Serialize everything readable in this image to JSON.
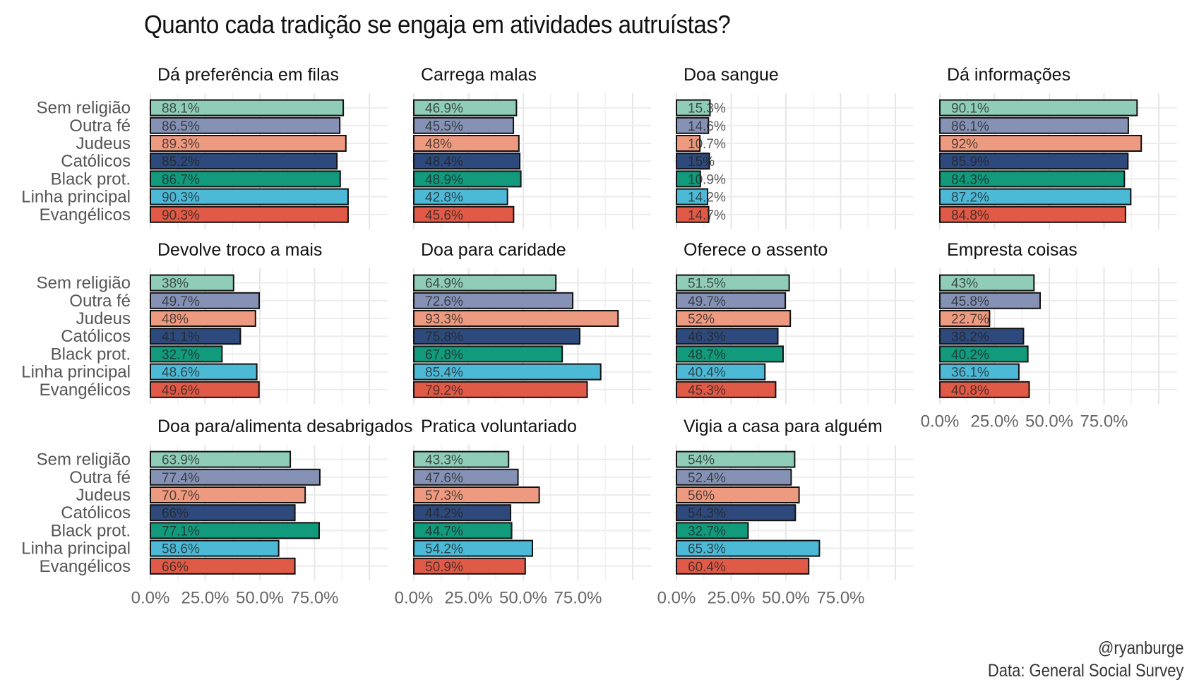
{
  "title": "Quanto cada tradição se engaja em atividades autruístas?",
  "credit": {
    "line1": "@ryanburge",
    "line2": "Data: General Social Survey"
  },
  "chart_data": {
    "type": "bar",
    "orientation": "horizontal",
    "facets": true,
    "categories": [
      "Sem religião",
      "Outra fé",
      "Judeus",
      "Católicos",
      "Black prot.",
      "Linha principal",
      "Evangélicos"
    ],
    "colors": [
      "#8fcdb8",
      "#8592b5",
      "#ee9a80",
      "#2e4a7d",
      "#129a7c",
      "#4cb9d6",
      "#e05a47"
    ],
    "xlim": [
      0,
      100
    ],
    "xticks": [
      "0.0%",
      "25.0%",
      "50.0%",
      "75.0%"
    ],
    "grid": true,
    "panels": [
      {
        "title": "Dá preferência em filas",
        "values": [
          88.1,
          86.5,
          89.3,
          85.2,
          86.7,
          90.3,
          90.3
        ],
        "labels": [
          "88.1%",
          "86.5%",
          "89.3%",
          "85.2%",
          "86.7%",
          "90.3%",
          "90.3%"
        ]
      },
      {
        "title": "Carrega malas",
        "values": [
          46.9,
          45.5,
          48,
          48.4,
          48.9,
          42.8,
          45.6
        ],
        "labels": [
          "46.9%",
          "45.5%",
          "48%",
          "48.4%",
          "48.9%",
          "42.8%",
          "45.6%"
        ]
      },
      {
        "title": "Doa sangue",
        "values": [
          15.3,
          14.6,
          10.7,
          15,
          10.9,
          14.2,
          14.7
        ],
        "labels": [
          "15.3%",
          "14.6%",
          "10.7%",
          "15%",
          "10.9%",
          "14.2%",
          "14.7%"
        ]
      },
      {
        "title": "Dá informações",
        "values": [
          90.1,
          86.1,
          92,
          85.9,
          84.3,
          87.2,
          84.8
        ],
        "labels": [
          "90.1%",
          "86.1%",
          "92%",
          "85.9%",
          "84.3%",
          "87.2%",
          "84.8%"
        ]
      },
      {
        "title": "Devolve troco a mais",
        "values": [
          38,
          49.7,
          48,
          41.1,
          32.7,
          48.6,
          49.6
        ],
        "labels": [
          "38%",
          "49.7%",
          "48%",
          "41.1%",
          "32.7%",
          "48.6%",
          "49.6%"
        ]
      },
      {
        "title": "Doa para caridade",
        "values": [
          64.9,
          72.6,
          93.3,
          75.8,
          67.8,
          85.4,
          79.2
        ],
        "labels": [
          "64.9%",
          "72.6%",
          "93.3%",
          "75.8%",
          "67.8%",
          "85.4%",
          "79.2%"
        ]
      },
      {
        "title": "Oferece o assento",
        "values": [
          51.5,
          49.7,
          52,
          46.3,
          48.7,
          40.4,
          45.3
        ],
        "labels": [
          "51.5%",
          "49.7%",
          "52%",
          "46.3%",
          "48.7%",
          "40.4%",
          "45.3%"
        ]
      },
      {
        "title": "Empresta coisas",
        "values": [
          43,
          45.8,
          22.7,
          38.2,
          40.2,
          36.1,
          40.8
        ],
        "labels": [
          "43%",
          "45.8%",
          "22.7%",
          "38.2%",
          "40.2%",
          "36.1%",
          "40.8%"
        ]
      },
      {
        "title": "Doa para/alimenta desabrigados",
        "values": [
          63.9,
          77.4,
          70.7,
          66,
          77.1,
          58.6,
          66
        ],
        "labels": [
          "63.9%",
          "77.4%",
          "70.7%",
          "66%",
          "77.1%",
          "58.6%",
          "66%"
        ]
      },
      {
        "title": "Pratica voluntariado",
        "values": [
          43.3,
          47.6,
          57.3,
          44.2,
          44.7,
          54.2,
          50.9
        ],
        "labels": [
          "43.3%",
          "47.6%",
          "57.3%",
          "44.2%",
          "44.7%",
          "54.2%",
          "50.9%"
        ]
      },
      {
        "title": "Vigia a casa para alguém",
        "values": [
          54,
          52.4,
          56,
          54.3,
          32.7,
          65.3,
          60.4
        ],
        "labels": [
          "54%",
          "52.4%",
          "56%",
          "54.3%",
          "32.7%",
          "65.3%",
          "60.4%"
        ]
      }
    ]
  }
}
